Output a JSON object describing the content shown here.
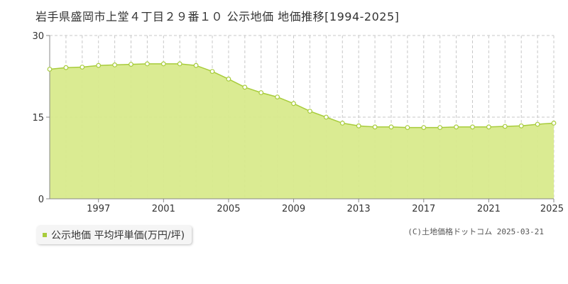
{
  "title": "岩手県盛岡市上堂４丁目２９番１０ 公示地価 地価推移[1994-2025]",
  "legend": {
    "label": "公示地価 平均坪単価(万円/坪)"
  },
  "credit": "(C)土地価格ドットコム 2025-03-21",
  "colors": {
    "fill": "#d8ea8c",
    "line": "#a8cc3c",
    "marker_fill": "#ffffff",
    "grid": "#c8c8c8",
    "axis": "#888888",
    "legend_swatch": "#a8cc3c"
  },
  "chart_data": {
    "type": "area",
    "x": [
      1994,
      1995,
      1996,
      1997,
      1998,
      1999,
      2000,
      2001,
      2002,
      2003,
      2004,
      2005,
      2006,
      2007,
      2008,
      2009,
      2010,
      2011,
      2012,
      2013,
      2014,
      2015,
      2016,
      2017,
      2018,
      2019,
      2020,
      2021,
      2022,
      2023,
      2024,
      2025
    ],
    "series": [
      {
        "values": [
          23.8,
          24.1,
          24.2,
          24.5,
          24.6,
          24.7,
          24.8,
          24.8,
          24.8,
          24.5,
          23.4,
          22.0,
          20.5,
          19.5,
          18.7,
          17.5,
          16.1,
          15.0,
          13.9,
          13.4,
          13.2,
          13.2,
          13.1,
          13.1,
          13.1,
          13.2,
          13.2,
          13.2,
          13.3,
          13.4,
          13.7,
          13.9
        ]
      }
    ],
    "xlim": [
      1994,
      2025
    ],
    "ylim": [
      0,
      30
    ],
    "yticks": [
      0,
      15,
      30
    ],
    "xticks": [
      1997,
      2001,
      2005,
      2009,
      2013,
      2017,
      2021,
      2025
    ],
    "grid": true
  }
}
